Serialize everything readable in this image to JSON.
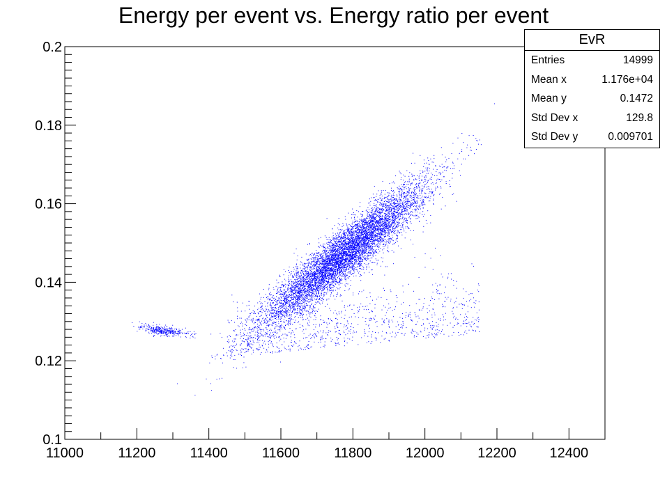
{
  "chart_data": {
    "type": "scatter",
    "title": "Energy per event vs. Energy ratio per event",
    "xlabel": "",
    "ylabel": "",
    "xlim": [
      11000,
      12500
    ],
    "ylim": [
      0.1,
      0.2
    ],
    "x_ticks": [
      "11000",
      "11200",
      "11400",
      "11600",
      "11800",
      "12000",
      "12200",
      "12400"
    ],
    "y_ticks": [
      "0.1",
      "0.12",
      "0.14",
      "0.16",
      "0.18",
      "0.2"
    ],
    "marker_color": "#0000ff",
    "grid": false,
    "clusters": [
      {
        "desc": "main correlated band",
        "x_mean": 11776,
        "y_mean": 0.1472,
        "x_sd": 115,
        "y_sd": 0.0092,
        "corr": 0.93,
        "fraction": 0.86
      },
      {
        "desc": "low-energy clump",
        "x_mean": 11265,
        "y_mean": 0.1278,
        "x_sd": 30,
        "y_sd": 0.0006,
        "fraction": 0.04
      },
      {
        "desc": "diffuse lower scatter",
        "x_range": [
          11450,
          12150
        ],
        "y_range": [
          0.121,
          0.15
        ],
        "fraction": 0.1
      }
    ],
    "stats_box": {
      "title": "EvR",
      "rows": [
        {
          "label": "Entries",
          "value": "14999"
        },
        {
          "label": "Mean x",
          "value": "1.176e+04"
        },
        {
          "label": "Mean y",
          "value": "0.1472"
        },
        {
          "label": "Std Dev x",
          "value": "129.8"
        },
        {
          "label": "Std Dev y",
          "value": "0.009701"
        }
      ]
    }
  }
}
